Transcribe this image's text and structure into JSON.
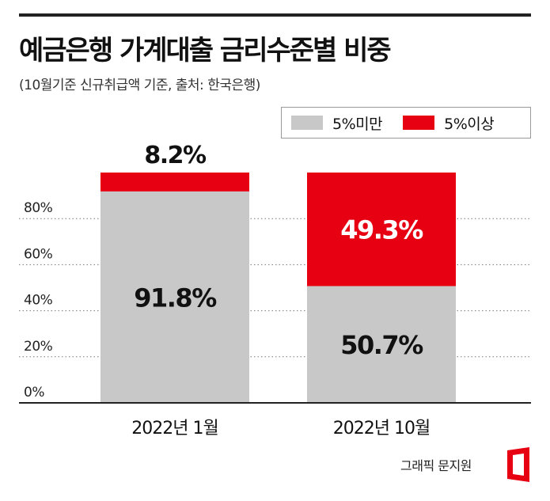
{
  "header": {
    "title": "예금은행 가계대출 금리수준별 비중",
    "subtitle": "(10월기준 신규취급액 기준, 출처: 한국은행)"
  },
  "credit": "그래픽 문지원",
  "colors": {
    "under5": "#c8c8c9",
    "over5": "#e60012",
    "rule": "#222222"
  },
  "logo_icon": "news-logo-icon",
  "chart_data": {
    "type": "bar",
    "stacked": true,
    "categories": [
      "2022년 1월",
      "2022년 10월"
    ],
    "series": [
      {
        "name": "5%미만",
        "values": [
          91.8,
          50.7
        ],
        "labels": [
          "91.8%",
          "50.7%"
        ]
      },
      {
        "name": "5%이상",
        "values": [
          8.2,
          49.3
        ],
        "labels": [
          "8.2%",
          "49.3%"
        ]
      }
    ],
    "ylim": [
      0,
      100
    ],
    "yticks": [
      0,
      20,
      40,
      60,
      80
    ],
    "ytick_labels": [
      "0%",
      "20%",
      "40%",
      "60%",
      "80%"
    ],
    "grid": true,
    "legend": "top-right"
  }
}
